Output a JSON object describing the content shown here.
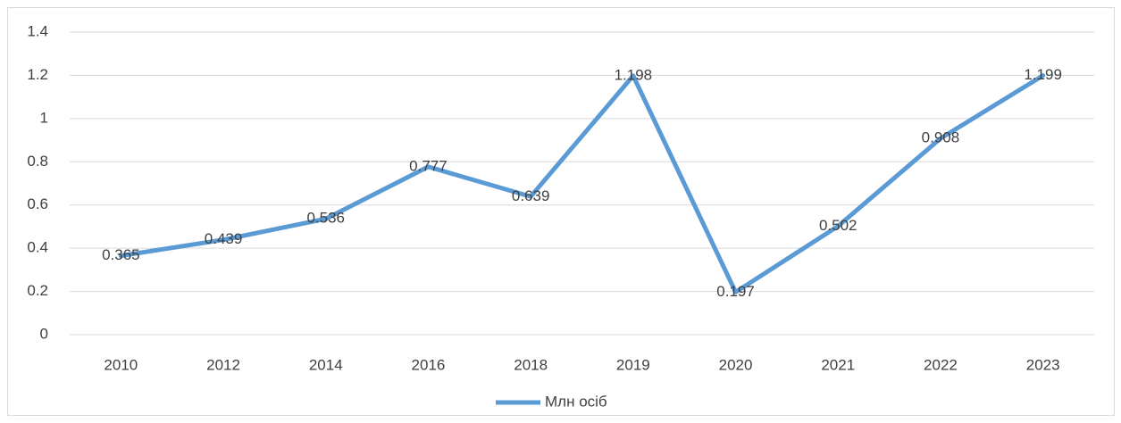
{
  "chart_data": {
    "type": "line",
    "categories": [
      "2010",
      "2012",
      "2014",
      "2016",
      "2018",
      "2019",
      "2020",
      "2021",
      "2022",
      "2023"
    ],
    "series": [
      {
        "name": "Млн осіб",
        "color": "#5b9bd5",
        "values": [
          0.365,
          0.439,
          0.536,
          0.777,
          0.639,
          1.198,
          0.197,
          0.502,
          0.908,
          1.199
        ]
      }
    ],
    "ylim": [
      0,
      1.4
    ],
    "yticks": [
      0,
      0.2,
      0.4,
      0.6,
      0.8,
      1,
      1.2,
      1.4
    ],
    "grid": true,
    "legend": "bottom",
    "data_labels": true
  }
}
